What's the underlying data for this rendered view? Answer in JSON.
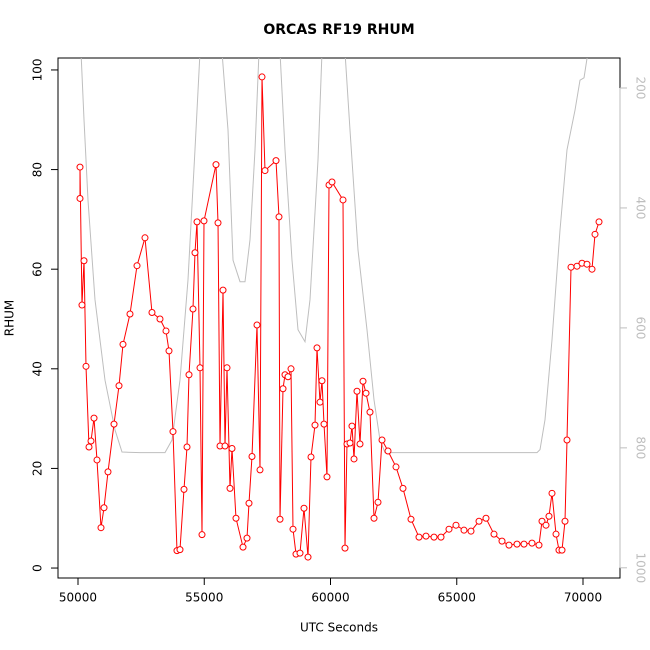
{
  "chart_data": {
    "type": "line",
    "title": "ORCAS RF19 RHUM",
    "xlabel": "UTC Seconds",
    "ylabel": "RHUM",
    "xlim": [
      49208,
      71465
    ],
    "ylim": [
      -2.0,
      102.4
    ],
    "y2lim": [
      1017,
      150
    ],
    "xticks": [
      50000,
      55000,
      60000,
      65000,
      70000
    ],
    "yticks": [
      0,
      20,
      40,
      60,
      80,
      100
    ],
    "y2ticks": [
      200,
      400,
      600,
      800,
      1000
    ],
    "series": [
      {
        "name": "RHUM",
        "color": "#ff0000",
        "x": [
          50079,
          50079,
          50158,
          50238,
          50317,
          50436,
          50515,
          50634,
          50752,
          50911,
          51030,
          51188,
          51426,
          51624,
          51782,
          52059,
          52337,
          52653,
          52930,
          53247,
          53485,
          53604,
          53762,
          53920,
          54039,
          54198,
          54317,
          54396,
          54554,
          54633,
          54713,
          54832,
          54911,
          54990,
          55465,
          55545,
          55624,
          55743,
          55822,
          55901,
          56020,
          56099,
          56257,
          56535,
          56693,
          56772,
          56891,
          57089,
          57208,
          57287,
          57406,
          57842,
          57960,
          58000,
          58119,
          58198,
          58317,
          58436,
          58515,
          58634,
          58792,
          58950,
          59109,
          59228,
          59386,
          59465,
          59584,
          59663,
          59743,
          59861,
          59941,
          60059,
          60495,
          60574,
          60653,
          60772,
          60851,
          60931,
          61049,
          61168,
          61287,
          61406,
          61564,
          61723,
          61881,
          62040,
          62277,
          62594,
          62871,
          63188,
          63505,
          63782,
          64099,
          64376,
          64693,
          64970,
          65287,
          65564,
          65881,
          66158,
          66475,
          66792,
          67069,
          67386,
          67663,
          67980,
          68256,
          68376,
          68534,
          68653,
          68772,
          68931,
          69049,
          69168,
          69287,
          69366,
          69525,
          69762,
          69960,
          70158,
          70356,
          70475,
          70634
        ],
        "values": [
          74.2,
          80.5,
          52.8,
          61.7,
          40.5,
          24.3,
          25.5,
          30.1,
          21.7,
          8.1,
          12.1,
          19.3,
          28.9,
          36.6,
          44.9,
          51,
          60.7,
          66.3,
          51.3,
          50,
          47.6,
          43.6,
          27.4,
          3.5,
          3.7,
          15.8,
          24.3,
          38.8,
          52,
          63.3,
          69.5,
          40.2,
          6.7,
          69.7,
          81,
          69.3,
          24.5,
          55.8,
          24.5,
          40.2,
          16,
          24,
          10,
          4.2,
          6,
          13,
          22.4,
          48.8,
          19.7,
          98.6,
          79.8,
          81.8,
          70.5,
          9.8,
          36,
          38.8,
          38.4,
          40,
          7.8,
          2.8,
          3,
          12,
          2.2,
          22.3,
          28.7,
          44.2,
          33.3,
          37.6,
          28.9,
          18.3,
          76.9,
          77.5,
          73.9,
          4,
          24.9,
          25.1,
          28.5,
          21.9,
          35.5,
          24.9,
          37.5,
          35.1,
          31.3,
          10,
          13.2,
          25.7,
          23.5,
          20.3,
          16,
          9.8,
          6.2,
          6.4,
          6.2,
          6.2,
          7.8,
          8.6,
          7.6,
          7.4,
          9.4,
          10,
          6.8,
          5.4,
          4.6,
          4.8,
          4.8,
          5,
          4.6,
          9.4,
          8.6,
          10.4,
          15,
          6.8,
          3.6,
          3.6,
          9.4,
          25.7,
          60.4,
          60.6,
          61.2,
          61,
          60,
          67,
          69.5
        ]
      },
      {
        "color": "#bebebe",
        "axis": "y2",
        "x": [
          50119,
          50238,
          50396,
          50673,
          51069,
          51465,
          51743,
          52455,
          53445,
          53723,
          54039,
          54356,
          54633,
          54832,
          55703,
          55941,
          56139,
          56416,
          56614,
          56812,
          57010,
          57168,
          58000,
          58198,
          58475,
          58713,
          58990,
          59188,
          59505,
          59663,
          60574,
          60772,
          61089,
          61445,
          61723,
          61960,
          62158,
          68178,
          68297,
          68495,
          68772,
          69089,
          69366,
          69683,
          69881,
          70040,
          70198
        ],
        "values": [
          140,
          253,
          387,
          553,
          687,
          770,
          807,
          808,
          808,
          787,
          687,
          520,
          303,
          140,
          140,
          270,
          487,
          523,
          523,
          453,
          303,
          140,
          140,
          303,
          487,
          603,
          623,
          553,
          320,
          140,
          140,
          270,
          470,
          603,
          720,
          787,
          808,
          808,
          803,
          753,
          620,
          437,
          303,
          237,
          187,
          183,
          140
        ]
      }
    ]
  }
}
